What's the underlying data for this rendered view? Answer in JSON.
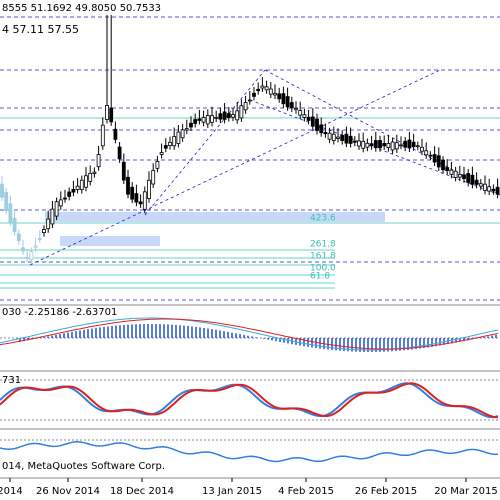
{
  "header": {
    "ohlc": "8555 51.1692 49.8050 50.7533",
    "indicator": "4 57.11 57.55"
  },
  "fibo_levels": [
    "423.6",
    "261.8",
    "161.8",
    "100.0",
    "61.8"
  ],
  "macd_label": "030 -2.25186 -2.63701",
  "stochastic_label": "731",
  "copyright": "014, MetaQuotes Software Corp.",
  "time_axis": [
    "2014",
    "26 Nov 2014",
    "18 Dec 2014",
    "13 Jan 2015",
    "4 Feb 2015",
    "26 Feb 2015",
    "20 Mar 2015"
  ]
}
